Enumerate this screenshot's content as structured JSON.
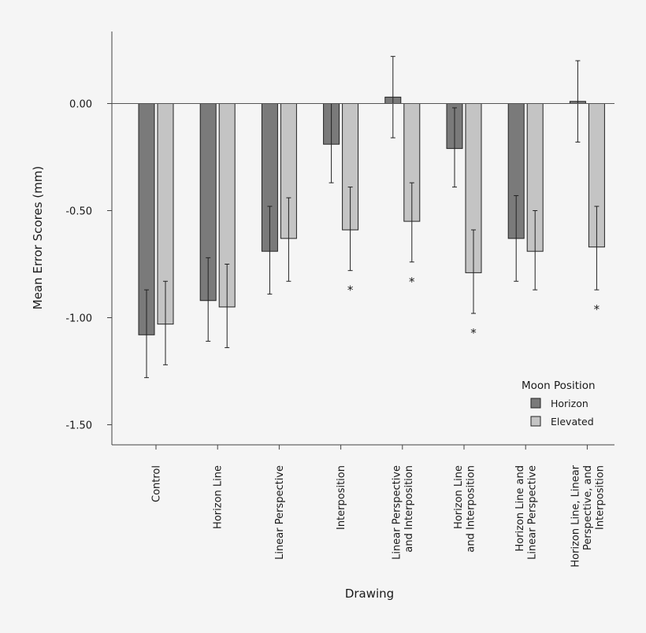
{
  "chart_data": {
    "type": "bar",
    "xlabel": "Drawing",
    "ylabel": "Mean Error Scores (mm)",
    "ylim": [
      -1.62,
      0.34
    ],
    "y_ticks": [
      0.0,
      -0.5,
      -1.0,
      -1.5
    ],
    "y_tick_labels": [
      "0.00",
      "-0.50",
      "-1.00",
      "-1.50"
    ],
    "categories": [
      [
        "Control"
      ],
      [
        "Horizon Line"
      ],
      [
        "Linear Perspective"
      ],
      [
        "Interposition"
      ],
      [
        "Linear Perspective",
        "and Interposition"
      ],
      [
        "Horizon Line",
        "and Interposition"
      ],
      [
        "Horizon Line and",
        "Linear Perspective"
      ],
      [
        "Horizon Line, Linear",
        "Perspective, and",
        "Interposition"
      ]
    ],
    "series": [
      {
        "name": "Horizon",
        "color": "#7a7a7a",
        "values": [
          -1.08,
          -0.92,
          -0.69,
          -0.19,
          0.03,
          -0.21,
          -0.63,
          0.01
        ],
        "err_low": [
          -1.28,
          -1.11,
          -0.89,
          -0.37,
          -0.16,
          -0.39,
          -0.83,
          -0.18
        ],
        "err_high": [
          -0.87,
          -0.72,
          -0.48,
          0.0,
          0.22,
          -0.02,
          -0.43,
          0.2
        ]
      },
      {
        "name": "Elevated",
        "color": "#c4c4c4",
        "values": [
          -1.03,
          -0.95,
          -0.63,
          -0.59,
          -0.55,
          -0.79,
          -0.69,
          -0.67
        ],
        "err_low": [
          -1.22,
          -1.14,
          -0.83,
          -0.78,
          -0.74,
          -0.98,
          -0.87,
          -0.87
        ],
        "err_high": [
          -0.83,
          -0.75,
          -0.44,
          -0.39,
          -0.37,
          -0.59,
          -0.5,
          -0.48
        ],
        "significance": [
          "",
          "",
          "",
          "*",
          "*",
          "*",
          "",
          "*"
        ]
      }
    ],
    "legend": {
      "title": "Moon Position",
      "placement": "bottom-right"
    },
    "grid": false
  }
}
